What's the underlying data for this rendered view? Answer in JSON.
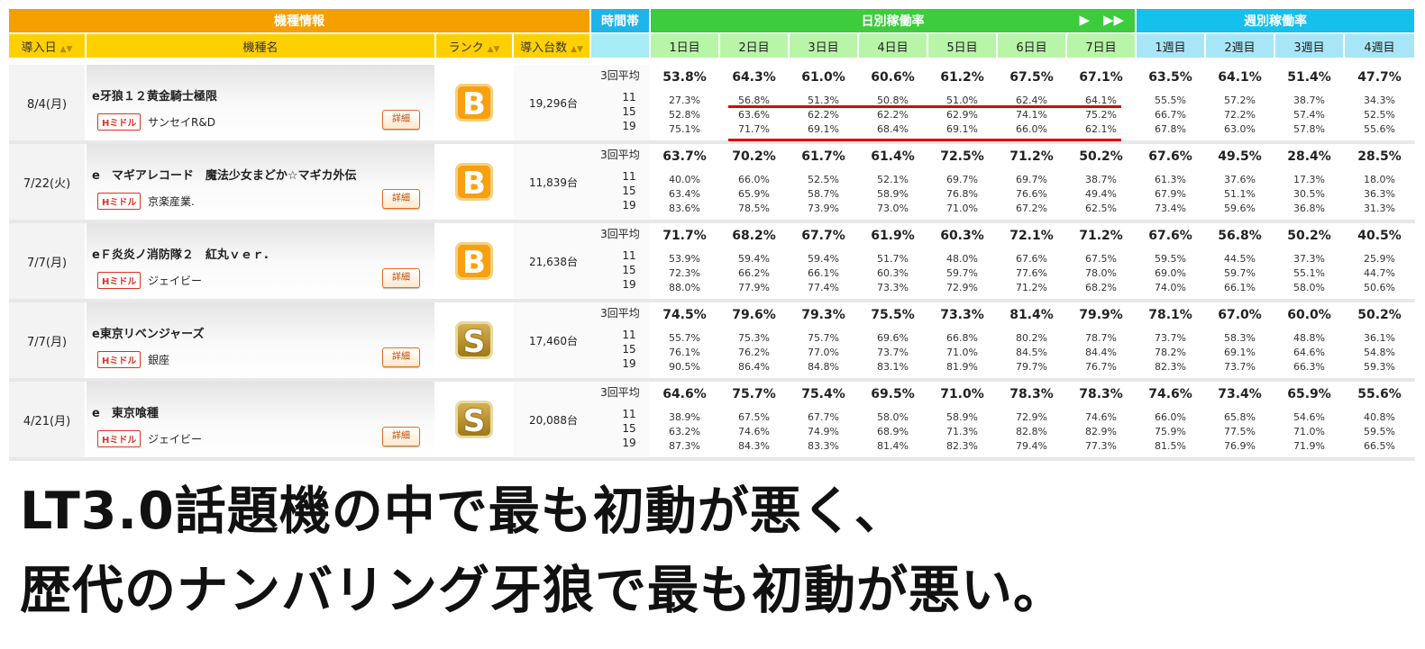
{
  "header": {
    "info_title": "機種情報",
    "time_title": "時間帯",
    "daily_title": "日別稼働率",
    "weekly_title": "週別稼働率",
    "cols": {
      "date": "導入日",
      "name": "機種名",
      "rank": "ランク",
      "units": "導入台数"
    },
    "days": [
      "1日目",
      "2日目",
      "3日目",
      "4日目",
      "5日目",
      "6日目",
      "7日目"
    ],
    "weeks": [
      "1週目",
      "2週目",
      "3週目",
      "4週目"
    ]
  },
  "time_labels": {
    "avg": "3回平均",
    "h1": "11",
    "h2": "15",
    "h3": "19"
  },
  "detail_label": "詳細",
  "tag_label": "Hミドル",
  "machines": [
    {
      "date": "8/4(月)",
      "name": "e牙狼１２黄金騎士極限",
      "maker": "サンセイR&D",
      "rank": "B",
      "units": "19,296台",
      "days": [
        {
          "avg": "53.8%",
          "h1": "27.3%",
          "h2": "52.8%",
          "h3": "75.1%"
        },
        {
          "avg": "64.3%",
          "h1": "56.8%",
          "h2": "63.6%",
          "h3": "71.7%"
        },
        {
          "avg": "61.0%",
          "h1": "51.3%",
          "h2": "62.2%",
          "h3": "69.1%"
        },
        {
          "avg": "60.6%",
          "h1": "50.8%",
          "h2": "62.2%",
          "h3": "68.4%"
        },
        {
          "avg": "61.2%",
          "h1": "51.0%",
          "h2": "62.9%",
          "h3": "69.1%"
        },
        {
          "avg": "67.5%",
          "h1": "62.4%",
          "h2": "74.1%",
          "h3": "66.0%"
        },
        {
          "avg": "67.1%",
          "h1": "64.1%",
          "h2": "75.2%",
          "h3": "62.1%"
        }
      ],
      "weeks": [
        {
          "avg": "63.5%",
          "h1": "55.5%",
          "h2": "66.7%",
          "h3": "67.8%"
        },
        {
          "avg": "64.1%",
          "h1": "57.2%",
          "h2": "72.2%",
          "h3": "63.0%"
        },
        {
          "avg": "51.4%",
          "h1": "38.7%",
          "h2": "57.4%",
          "h3": "57.8%"
        },
        {
          "avg": "47.7%",
          "h1": "34.3%",
          "h2": "52.5%",
          "h3": "55.6%"
        }
      ]
    },
    {
      "date": "7/22(火)",
      "name": "e　マギアレコード　魔法少女まどか☆マギカ外伝",
      "maker": "京楽産業.",
      "rank": "B",
      "units": "11,839台",
      "days": [
        {
          "avg": "63.7%",
          "h1": "40.0%",
          "h2": "63.4%",
          "h3": "83.6%"
        },
        {
          "avg": "70.2%",
          "h1": "66.0%",
          "h2": "65.9%",
          "h3": "78.5%"
        },
        {
          "avg": "61.7%",
          "h1": "52.5%",
          "h2": "58.7%",
          "h3": "73.9%"
        },
        {
          "avg": "61.4%",
          "h1": "52.1%",
          "h2": "58.9%",
          "h3": "73.0%"
        },
        {
          "avg": "72.5%",
          "h1": "69.7%",
          "h2": "76.8%",
          "h3": "71.0%"
        },
        {
          "avg": "71.2%",
          "h1": "69.7%",
          "h2": "76.6%",
          "h3": "67.2%"
        },
        {
          "avg": "50.2%",
          "h1": "38.7%",
          "h2": "49.4%",
          "h3": "62.5%"
        }
      ],
      "weeks": [
        {
          "avg": "67.6%",
          "h1": "61.3%",
          "h2": "67.9%",
          "h3": "73.4%"
        },
        {
          "avg": "49.5%",
          "h1": "37.6%",
          "h2": "51.1%",
          "h3": "59.6%"
        },
        {
          "avg": "28.4%",
          "h1": "17.3%",
          "h2": "30.5%",
          "h3": "36.8%"
        },
        {
          "avg": "28.5%",
          "h1": "18.0%",
          "h2": "36.3%",
          "h3": "31.3%"
        }
      ]
    },
    {
      "date": "7/7(月)",
      "name": "eＦ炎炎ノ消防隊２　紅丸ｖｅｒ.",
      "maker": "ジェイビー",
      "rank": "B",
      "units": "21,638台",
      "days": [
        {
          "avg": "71.7%",
          "h1": "53.9%",
          "h2": "72.3%",
          "h3": "88.0%"
        },
        {
          "avg": "68.2%",
          "h1": "59.4%",
          "h2": "66.2%",
          "h3": "77.9%"
        },
        {
          "avg": "67.7%",
          "h1": "59.4%",
          "h2": "66.1%",
          "h3": "77.4%"
        },
        {
          "avg": "61.9%",
          "h1": "51.7%",
          "h2": "60.3%",
          "h3": "73.3%"
        },
        {
          "avg": "60.3%",
          "h1": "48.0%",
          "h2": "59.7%",
          "h3": "72.9%"
        },
        {
          "avg": "72.1%",
          "h1": "67.6%",
          "h2": "77.6%",
          "h3": "71.2%"
        },
        {
          "avg": "71.2%",
          "h1": "67.5%",
          "h2": "78.0%",
          "h3": "68.2%"
        }
      ],
      "weeks": [
        {
          "avg": "67.6%",
          "h1": "59.5%",
          "h2": "69.0%",
          "h3": "74.0%"
        },
        {
          "avg": "56.8%",
          "h1": "44.5%",
          "h2": "59.7%",
          "h3": "66.1%"
        },
        {
          "avg": "50.2%",
          "h1": "37.3%",
          "h2": "55.1%",
          "h3": "58.0%"
        },
        {
          "avg": "40.5%",
          "h1": "25.9%",
          "h2": "44.7%",
          "h3": "50.6%"
        }
      ]
    },
    {
      "date": "7/7(月)",
      "name": "e東京リベンジャーズ",
      "maker": "銀座",
      "rank": "S",
      "units": "17,460台",
      "days": [
        {
          "avg": "74.5%",
          "h1": "55.7%",
          "h2": "76.1%",
          "h3": "90.5%"
        },
        {
          "avg": "79.6%",
          "h1": "75.3%",
          "h2": "76.2%",
          "h3": "86.4%"
        },
        {
          "avg": "79.3%",
          "h1": "75.7%",
          "h2": "77.0%",
          "h3": "84.8%"
        },
        {
          "avg": "75.5%",
          "h1": "69.6%",
          "h2": "73.7%",
          "h3": "83.1%"
        },
        {
          "avg": "73.3%",
          "h1": "66.8%",
          "h2": "71.0%",
          "h3": "81.9%"
        },
        {
          "avg": "81.4%",
          "h1": "80.2%",
          "h2": "84.5%",
          "h3": "79.7%"
        },
        {
          "avg": "79.9%",
          "h1": "78.7%",
          "h2": "84.4%",
          "h3": "76.7%"
        }
      ],
      "weeks": [
        {
          "avg": "78.1%",
          "h1": "73.7%",
          "h2": "78.2%",
          "h3": "82.3%"
        },
        {
          "avg": "67.0%",
          "h1": "58.3%",
          "h2": "69.1%",
          "h3": "73.7%"
        },
        {
          "avg": "60.0%",
          "h1": "48.8%",
          "h2": "64.6%",
          "h3": "66.3%"
        },
        {
          "avg": "50.2%",
          "h1": "36.1%",
          "h2": "54.8%",
          "h3": "59.3%"
        }
      ]
    },
    {
      "date": "4/21(月)",
      "name": "e　東京喰種",
      "maker": "ジェイビー",
      "rank": "S",
      "units": "20,088台",
      "days": [
        {
          "avg": "64.6%",
          "h1": "38.9%",
          "h2": "63.2%",
          "h3": "87.3%"
        },
        {
          "avg": "75.7%",
          "h1": "67.5%",
          "h2": "74.6%",
          "h3": "84.3%"
        },
        {
          "avg": "75.4%",
          "h1": "67.7%",
          "h2": "74.9%",
          "h3": "83.3%"
        },
        {
          "avg": "69.5%",
          "h1": "58.0%",
          "h2": "68.9%",
          "h3": "81.4%"
        },
        {
          "avg": "71.0%",
          "h1": "58.9%",
          "h2": "71.3%",
          "h3": "82.3%"
        },
        {
          "avg": "78.3%",
          "h1": "72.9%",
          "h2": "82.8%",
          "h3": "79.4%"
        },
        {
          "avg": "78.3%",
          "h1": "74.6%",
          "h2": "82.9%",
          "h3": "77.3%"
        }
      ],
      "weeks": [
        {
          "avg": "74.6%",
          "h1": "66.0%",
          "h2": "75.9%",
          "h3": "81.5%"
        },
        {
          "avg": "73.4%",
          "h1": "65.8%",
          "h2": "77.5%",
          "h3": "76.9%"
        },
        {
          "avg": "65.9%",
          "h1": "54.6%",
          "h2": "71.0%",
          "h3": "71.9%"
        },
        {
          "avg": "55.6%",
          "h1": "40.8%",
          "h2": "59.5%",
          "h3": "66.5%"
        }
      ]
    }
  ],
  "caption": {
    "line1": "LT3.0話題機の中で最も初動が悪く、",
    "line2": "歴代のナンバリング牙狼で最も初動が悪い。"
  },
  "colors": {
    "info": "#f5a000",
    "time": "#1eb4ea",
    "daily": "#3ccc3c",
    "weekly": "#15bfee",
    "highlight": "#e00000"
  }
}
